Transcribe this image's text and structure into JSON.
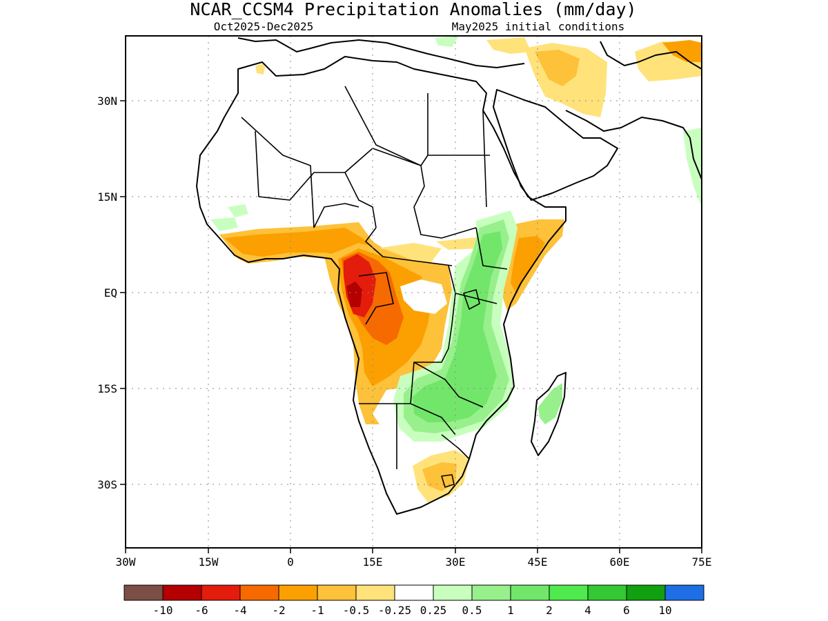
{
  "header": {
    "title": "NCAR_CCSM4 Precipitation Anomalies (mm/day)",
    "season": "Oct2025-Dec2025",
    "init": "May2025 initial conditions"
  },
  "axes": {
    "lat_labels": [
      "30N",
      "15N",
      "EQ",
      "15S",
      "30S"
    ],
    "lon_labels": [
      "30W",
      "15W",
      "0",
      "15E",
      "30E",
      "45E",
      "60E",
      "75E"
    ]
  },
  "legend": {
    "colors": [
      "#7b4f45",
      "#b40000",
      "#e31c0c",
      "#f66a00",
      "#fba000",
      "#fdc13a",
      "#ffe27a",
      "#ffffff",
      "#c8ffbe",
      "#98f08c",
      "#72e66a",
      "#4eea4e",
      "#34c834",
      "#10a010",
      "#1e6ee6"
    ],
    "labels": [
      "-10",
      "-6",
      "-4",
      "-2",
      "-1",
      "-0.5",
      "-0.25",
      "0.25",
      "0.5",
      "1",
      "2",
      "4",
      "6",
      "10"
    ]
  }
}
